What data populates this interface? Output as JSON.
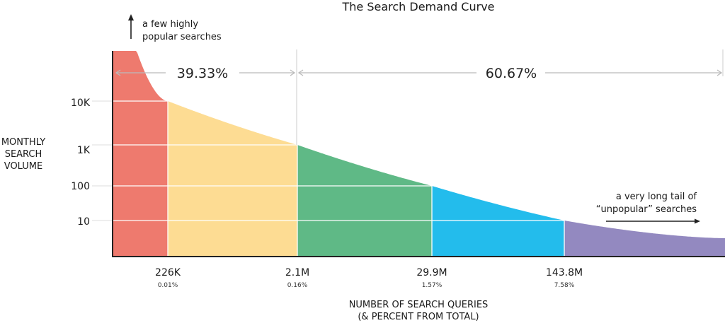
{
  "chart_data": {
    "type": "area",
    "title": "The Search Demand Curve",
    "ylabel_lines": [
      "MONTHLY",
      "SEARCH",
      "VOLUME"
    ],
    "xlabel_lines": [
      "NUMBER OF SEARCH QUERIES",
      "(& PERCENT FROM TOTAL)"
    ],
    "y_scale": "log",
    "y_ticks": [
      {
        "label": "10K",
        "value": 10000
      },
      {
        "label": "1K",
        "value": 1000
      },
      {
        "label": "100",
        "value": 100
      },
      {
        "label": "10",
        "value": 10
      }
    ],
    "x_ticks": [
      {
        "label": "226K",
        "percent": "0.01%"
      },
      {
        "label": "2.1M",
        "percent": "0.16%"
      },
      {
        "label": "29.9M",
        "percent": "1.57%"
      },
      {
        "label": "143.8M",
        "percent": "7.58%"
      }
    ],
    "segments": [
      {
        "color": "#ee7a6e"
      },
      {
        "color": "#fddc93"
      },
      {
        "color": "#5fb986"
      },
      {
        "color": "#23bcec"
      },
      {
        "color": "#9389c0"
      }
    ],
    "share_labels": [
      "39.33%",
      "60.67%"
    ],
    "annotations": {
      "head": [
        "a few highly",
        "popular searches"
      ],
      "tail": [
        "a very long tail of",
        "“unpopular” searches"
      ]
    },
    "grid": true
  }
}
